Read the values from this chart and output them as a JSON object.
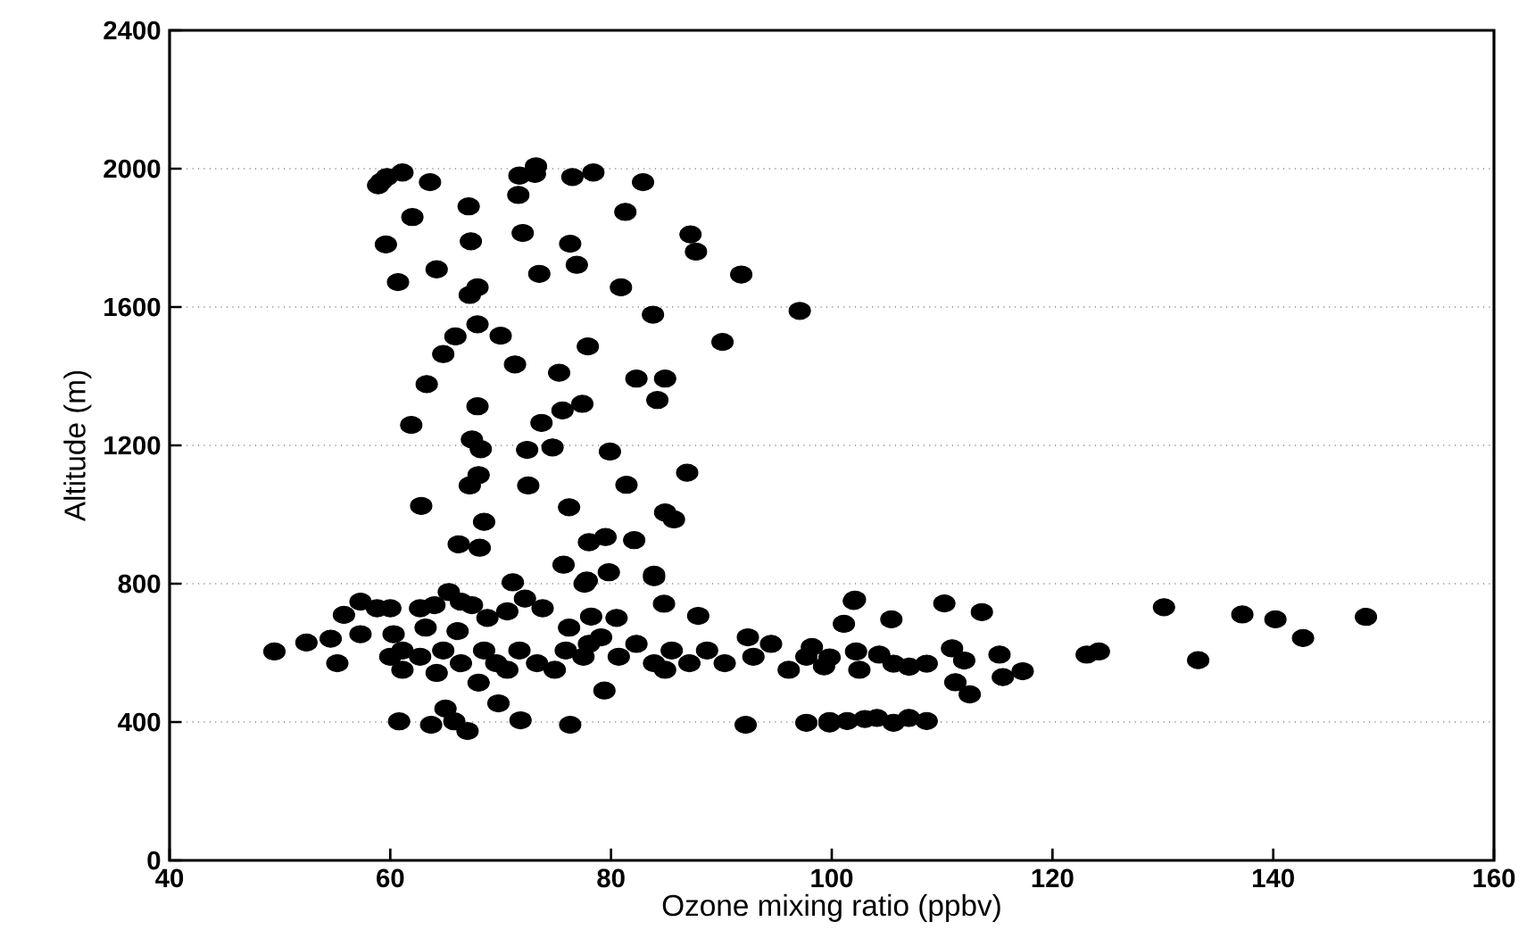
{
  "chart_data": {
    "type": "scatter",
    "xlabel": "Ozone mixing ratio (ppbv)",
    "ylabel": "Altitude (m)",
    "xlim": [
      40,
      160
    ],
    "ylim": [
      0,
      2400
    ],
    "xticks": [
      40,
      60,
      80,
      100,
      120,
      140,
      160
    ],
    "yticks": [
      0,
      400,
      800,
      1200,
      1600,
      2000,
      2400
    ],
    "grid": "y",
    "marker": "circle",
    "color": "#000000",
    "x": [
      59.2,
      58.9,
      59.7,
      61.1,
      63.6,
      67.1,
      62.0,
      59.6,
      67.3,
      64.2,
      60.7,
      67.9,
      67.2,
      71.7,
      73.2,
      73.1,
      71.6,
      72.0,
      76.5,
      78.4,
      76.3,
      76.9,
      73.5,
      82.9,
      81.3,
      87.2,
      87.7,
      80.9,
      91.8,
      83.8,
      97.1,
      67.9,
      65.9,
      70.0,
      64.8,
      77.9,
      71.3,
      90.1,
      75.3,
      82.3,
      84.9,
      84.2,
      63.3,
      67.9,
      61.9,
      75.6,
      77.4,
      73.7,
      67.4,
      68.2,
      72.4,
      74.7,
      79.9,
      68.0,
      67.2,
      72.5,
      81.4,
      86.9,
      62.8,
      76.2,
      68.5,
      84.9,
      85.7,
      66.2,
      68.1,
      78.0,
      79.5,
      82.1,
      75.7,
      79.8,
      77.6,
      83.9,
      102.1,
      49.5,
      52.4,
      54.6,
      55.8,
      55.2,
      57.3,
      57.3,
      58.8,
      60.0,
      60.3,
      60.8,
      62.7,
      63.2,
      64.0,
      65.3,
      66.4,
      67.4,
      68.8,
      66.1,
      65.0,
      63.7,
      65.8,
      67.0,
      69.8,
      71.1,
      70.6,
      72.2,
      73.8,
      71.8,
      76.2,
      78.2,
      77.8,
      80.5,
      84.8,
      87.9,
      76.3,
      79.4,
      83.9,
      92.2,
      97.7,
      99.8,
      61.1,
      61.1,
      62.7,
      64.2,
      64.8,
      66.4,
      68.0,
      68.5,
      69.6,
      71.7,
      73.3,
      74.9,
      75.9,
      77.5,
      79.1,
      80.7,
      82.3,
      83.9,
      85.5,
      87.1,
      88.7,
      90.3,
      92.4,
      92.9,
      94.5,
      96.1,
      97.7,
      98.2,
      99.3,
      60.0,
      70.6,
      78.0,
      84.9,
      102.0,
      101.1,
      105.4,
      110.2,
      113.6,
      130.1,
      137.2,
      140.2,
      142.7,
      148.4,
      133.2,
      123.1,
      124.2,
      110.9,
      112.0,
      111.2,
      112.5,
      115.2,
      115.5,
      117.3,
      99.8,
      102.2,
      102.5,
      104.3,
      105.6,
      107.0,
      108.6,
      99.8,
      101.4,
      103.0,
      104.1,
      105.6,
      107.0,
      108.6
    ],
    "values": [
      1963,
      1952,
      1976,
      1989,
      1961,
      1891,
      1860,
      1781,
      1790,
      1709,
      1672,
      1657,
      1635,
      1980,
      2007,
      1985,
      1924,
      1814,
      1976,
      1989,
      1783,
      1722,
      1696,
      1961,
      1875,
      1810,
      1760,
      1657,
      1694,
      1578,
      1589,
      1550,
      1515,
      1517,
      1464,
      1486,
      1434,
      1499,
      1410,
      1393,
      1393,
      1331,
      1377,
      1313,
      1259,
      1301,
      1320,
      1265,
      1217,
      1189,
      1187,
      1194,
      1182,
      1114,
      1084,
      1084,
      1086,
      1121,
      1025,
      1021,
      979,
      1006,
      986,
      914,
      904,
      920,
      935,
      926,
      855,
      833,
      800,
      819,
      754,
      604,
      630,
      641,
      710,
      570,
      748,
      654,
      729,
      729,
      654,
      402,
      729,
      673,
      738,
      776,
      748,
      738,
      701,
      663,
      439,
      392,
      402,
      374,
      454,
      804,
      720,
      757,
      729,
      405,
      673,
      705,
      809,
      701,
      742,
      707,
      392,
      491,
      826,
      392,
      398,
      396,
      607,
      551,
      589,
      542,
      607,
      570,
      514,
      607,
      570,
      607,
      570,
      551,
      607,
      589,
      645,
      589,
      626,
      570,
      607,
      570,
      607,
      570,
      645,
      589,
      626,
      551,
      589,
      617,
      561,
      589,
      551,
      626,
      551,
      750,
      684,
      697,
      743,
      718,
      732,
      711,
      697,
      643,
      704,
      579,
      595,
      604,
      613,
      578,
      515,
      480,
      595,
      530,
      547,
      587,
      604,
      551,
      595,
      569,
      560,
      569,
      403,
      403,
      409,
      412,
      398,
      412,
      403
    ]
  }
}
